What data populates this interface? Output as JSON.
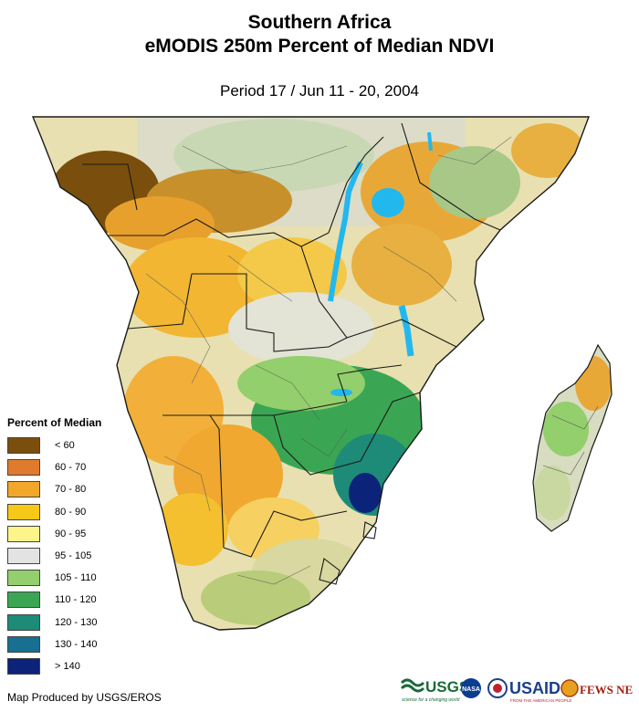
{
  "title": {
    "line1": "Southern Africa",
    "line2": "eMODIS 250m Percent of Median NDVI"
  },
  "subtitle": "Period 17 / Jun 11 - 20, 2004",
  "legend": {
    "title": "Percent of Median",
    "items": [
      {
        "label": "< 60",
        "color": "#7a4e0c"
      },
      {
        "label": "60 - 70",
        "color": "#e07b2e"
      },
      {
        "label": "70 - 80",
        "color": "#f2a72b"
      },
      {
        "label": "80 - 90",
        "color": "#f6c818"
      },
      {
        "label": "90 - 95",
        "color": "#fbf58a"
      },
      {
        "label": "95 - 105",
        "color": "#e3e3e3"
      },
      {
        "label": "105 - 110",
        "color": "#93cf6c"
      },
      {
        "label": "110 - 120",
        "color": "#3aa653"
      },
      {
        "label": "120 - 130",
        "color": "#1e8a78"
      },
      {
        "label": "130 - 140",
        "color": "#176f92"
      },
      {
        "label": "> 140",
        "color": "#0c237a"
      }
    ]
  },
  "credit": "Map Produced by USGS/EROS",
  "logos": {
    "usgs": "USGS",
    "usgs_tagline": "science for a changing world",
    "nasa": "NASA",
    "usaid": "USAID",
    "usaid_tagline": "FROM THE AMERICAN PEOPLE",
    "fews": "FEWS NET"
  },
  "map_colors": {
    "water": "#22b8ee",
    "border": "#1a1a1a",
    "subborder": "#555555"
  }
}
